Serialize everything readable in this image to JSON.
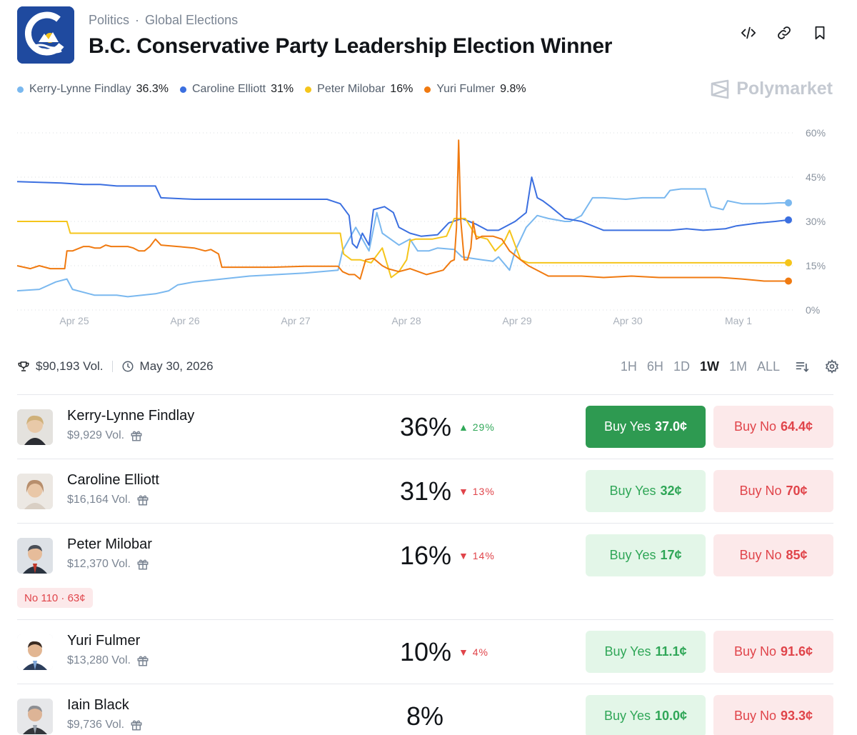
{
  "header": {
    "category": "Politics",
    "subcategory": "Global Elections",
    "title": "B.C. Conservative Party Leadership Election Winner",
    "icons": [
      "code-embed-icon",
      "link-icon",
      "bookmark-icon"
    ],
    "brand": "Polymarket"
  },
  "legend": [
    {
      "name": "Kerry-Lynne Findlay",
      "pct": "36.3%",
      "color": "#7ab8ef"
    },
    {
      "name": "Caroline Elliott",
      "pct": "31%",
      "color": "#3b6fe0"
    },
    {
      "name": "Peter Milobar",
      "pct": "16%",
      "color": "#f5c51b"
    },
    {
      "name": "Yuri Fulmer",
      "pct": "9.8%",
      "color": "#f07a10"
    }
  ],
  "chart_data": {
    "type": "line",
    "x_tick_labels": [
      "Apr 25",
      "Apr 26",
      "Apr 27",
      "Apr 28",
      "Apr 29",
      "Apr 30",
      "May 1"
    ],
    "y_tick_labels": [
      "60%",
      "45%",
      "30%",
      "15%",
      "0%"
    ],
    "ylim": [
      0,
      60
    ],
    "xlim": [
      0,
      7
    ],
    "grid": "horizontal dotted",
    "series": [
      {
        "name": "Kerry-Lynne Findlay",
        "color": "#7ab8ef",
        "points": [
          [
            0,
            6.5
          ],
          [
            0.2,
            7
          ],
          [
            0.35,
            9.5
          ],
          [
            0.45,
            10.5
          ],
          [
            0.5,
            7
          ],
          [
            0.7,
            5
          ],
          [
            0.9,
            5
          ],
          [
            1.0,
            4.5
          ],
          [
            1.25,
            5.5
          ],
          [
            1.37,
            6.5
          ],
          [
            1.45,
            8.5
          ],
          [
            1.6,
            9.5
          ],
          [
            1.85,
            10.5
          ],
          [
            2.1,
            11.5
          ],
          [
            2.35,
            12
          ],
          [
            2.6,
            12.5
          ],
          [
            2.9,
            13.5
          ],
          [
            2.94,
            20
          ],
          [
            3.06,
            28
          ],
          [
            3.12,
            24
          ],
          [
            3.18,
            20
          ],
          [
            3.25,
            33
          ],
          [
            3.3,
            26
          ],
          [
            3.45,
            22
          ],
          [
            3.55,
            24
          ],
          [
            3.62,
            20
          ],
          [
            3.72,
            20
          ],
          [
            3.8,
            21
          ],
          [
            3.95,
            20.5
          ],
          [
            4.02,
            18
          ],
          [
            4.2,
            17
          ],
          [
            4.3,
            16.5
          ],
          [
            4.35,
            18
          ],
          [
            4.45,
            13.5
          ],
          [
            4.5,
            20
          ],
          [
            4.6,
            28
          ],
          [
            4.7,
            32
          ],
          [
            4.8,
            31
          ],
          [
            4.95,
            30
          ],
          [
            5.0,
            30
          ],
          [
            5.1,
            32
          ],
          [
            5.2,
            38
          ],
          [
            5.3,
            38
          ],
          [
            5.5,
            37.5
          ],
          [
            5.65,
            38
          ],
          [
            5.85,
            38
          ],
          [
            5.9,
            40.5
          ],
          [
            6.0,
            41
          ],
          [
            6.1,
            41
          ],
          [
            6.22,
            41
          ],
          [
            6.27,
            35
          ],
          [
            6.38,
            34
          ],
          [
            6.42,
            37
          ],
          [
            6.55,
            36
          ],
          [
            6.75,
            36
          ],
          [
            6.88,
            36.3
          ],
          [
            6.97,
            36.3
          ]
        ]
      },
      {
        "name": "Caroline Elliott",
        "color": "#3b6fe0",
        "points": [
          [
            0,
            43.5
          ],
          [
            0.4,
            43
          ],
          [
            0.6,
            42.5
          ],
          [
            0.75,
            42.5
          ],
          [
            0.9,
            42
          ],
          [
            1.1,
            42
          ],
          [
            1.25,
            42
          ],
          [
            1.3,
            38
          ],
          [
            1.6,
            37.5
          ],
          [
            2.2,
            37.5
          ],
          [
            2.6,
            37.5
          ],
          [
            2.8,
            37.5
          ],
          [
            2.84,
            37
          ],
          [
            2.92,
            36
          ],
          [
            3.0,
            32
          ],
          [
            3.03,
            22.5
          ],
          [
            3.07,
            21
          ],
          [
            3.12,
            26
          ],
          [
            3.18,
            22
          ],
          [
            3.22,
            34
          ],
          [
            3.32,
            35
          ],
          [
            3.4,
            33
          ],
          [
            3.45,
            28
          ],
          [
            3.55,
            26
          ],
          [
            3.65,
            25
          ],
          [
            3.8,
            25.5
          ],
          [
            3.9,
            29.5
          ],
          [
            4.02,
            31
          ],
          [
            4.15,
            29
          ],
          [
            4.25,
            27
          ],
          [
            4.35,
            27
          ],
          [
            4.5,
            30
          ],
          [
            4.6,
            33
          ],
          [
            4.65,
            45
          ],
          [
            4.7,
            38
          ],
          [
            4.75,
            37
          ],
          [
            4.82,
            35
          ],
          [
            4.95,
            31
          ],
          [
            5.1,
            30
          ],
          [
            5.3,
            27
          ],
          [
            5.6,
            27
          ],
          [
            5.9,
            27
          ],
          [
            6.05,
            27.5
          ],
          [
            6.2,
            27
          ],
          [
            6.4,
            27.5
          ],
          [
            6.5,
            28.5
          ],
          [
            6.7,
            29.5
          ],
          [
            6.85,
            30
          ],
          [
            6.97,
            30.5
          ]
        ]
      },
      {
        "name": "Peter Milobar",
        "color": "#f5c51b",
        "points": [
          [
            0,
            30
          ],
          [
            0.45,
            30
          ],
          [
            0.48,
            26
          ],
          [
            0.85,
            26
          ],
          [
            1.2,
            26
          ],
          [
            1.6,
            26
          ],
          [
            2.0,
            26
          ],
          [
            2.4,
            26
          ],
          [
            2.92,
            26
          ],
          [
            2.95,
            19
          ],
          [
            3.02,
            17
          ],
          [
            3.1,
            17
          ],
          [
            3.2,
            16
          ],
          [
            3.3,
            21
          ],
          [
            3.38,
            11
          ],
          [
            3.45,
            13
          ],
          [
            3.52,
            17
          ],
          [
            3.55,
            23.5
          ],
          [
            3.6,
            24
          ],
          [
            3.75,
            24
          ],
          [
            3.88,
            25
          ],
          [
            3.95,
            31
          ],
          [
            4.05,
            31
          ],
          [
            4.15,
            25
          ],
          [
            4.25,
            24
          ],
          [
            4.32,
            20
          ],
          [
            4.4,
            23
          ],
          [
            4.45,
            27
          ],
          [
            4.5,
            22
          ],
          [
            4.55,
            17
          ],
          [
            4.62,
            16
          ],
          [
            4.8,
            16
          ],
          [
            5.2,
            16
          ],
          [
            5.6,
            16
          ],
          [
            6.0,
            16
          ],
          [
            6.5,
            16
          ],
          [
            6.97,
            16
          ]
        ]
      },
      {
        "name": "Yuri Fulmer",
        "color": "#f07a10",
        "points": [
          [
            0,
            15
          ],
          [
            0.12,
            14
          ],
          [
            0.2,
            15
          ],
          [
            0.3,
            14
          ],
          [
            0.43,
            14
          ],
          [
            0.45,
            20
          ],
          [
            0.5,
            20
          ],
          [
            0.6,
            21.5
          ],
          [
            0.65,
            21.5
          ],
          [
            0.7,
            21
          ],
          [
            0.75,
            21
          ],
          [
            0.8,
            22
          ],
          [
            0.85,
            21.5
          ],
          [
            0.95,
            21.5
          ],
          [
            1.0,
            21.5
          ],
          [
            1.05,
            21
          ],
          [
            1.1,
            20
          ],
          [
            1.15,
            20
          ],
          [
            1.2,
            21.5
          ],
          [
            1.25,
            24
          ],
          [
            1.3,
            22
          ],
          [
            1.45,
            21.5
          ],
          [
            1.6,
            21
          ],
          [
            1.7,
            20
          ],
          [
            1.75,
            20.5
          ],
          [
            1.82,
            19
          ],
          [
            1.85,
            14.5
          ],
          [
            2.0,
            14.5
          ],
          [
            2.3,
            14.5
          ],
          [
            2.6,
            14.8
          ],
          [
            2.9,
            14.8
          ],
          [
            2.94,
            13
          ],
          [
            3.0,
            12
          ],
          [
            3.05,
            12
          ],
          [
            3.1,
            10.5
          ],
          [
            3.15,
            17
          ],
          [
            3.22,
            17.5
          ],
          [
            3.3,
            15
          ],
          [
            3.35,
            14
          ],
          [
            3.45,
            13
          ],
          [
            3.55,
            14
          ],
          [
            3.7,
            12
          ],
          [
            3.85,
            13.5
          ],
          [
            3.92,
            16.5
          ],
          [
            3.95,
            17
          ],
          [
            3.97,
            28
          ],
          [
            3.99,
            57.5
          ],
          [
            4.01,
            30
          ],
          [
            4.04,
            17
          ],
          [
            4.07,
            17
          ],
          [
            4.1,
            21
          ],
          [
            4.12,
            30
          ],
          [
            4.15,
            24
          ],
          [
            4.2,
            25
          ],
          [
            4.3,
            25
          ],
          [
            4.38,
            24
          ],
          [
            4.45,
            20
          ],
          [
            4.55,
            17
          ],
          [
            4.62,
            15
          ],
          [
            4.8,
            11.5
          ],
          [
            5.1,
            11.5
          ],
          [
            5.3,
            11
          ],
          [
            5.55,
            11.5
          ],
          [
            5.8,
            11
          ],
          [
            6.0,
            11
          ],
          [
            6.2,
            11
          ],
          [
            6.35,
            11
          ],
          [
            6.55,
            10.5
          ],
          [
            6.7,
            10
          ],
          [
            6.75,
            9.8
          ],
          [
            6.85,
            9.8
          ],
          [
            6.97,
            9.8
          ]
        ]
      }
    ]
  },
  "meta": {
    "volume": "$90,193 Vol.",
    "end_date": "May 30, 2026"
  },
  "ranges": [
    {
      "label": "1H",
      "active": false
    },
    {
      "label": "6H",
      "active": false
    },
    {
      "label": "1D",
      "active": false
    },
    {
      "label": "1W",
      "active": true
    },
    {
      "label": "1M",
      "active": false
    },
    {
      "label": "ALL",
      "active": false
    }
  ],
  "outcomes": [
    {
      "name": "Kerry-Lynne Findlay",
      "volume": "$9,929 Vol.",
      "pct": "36%",
      "change": "29%",
      "direction": "up",
      "yes_label": "Buy Yes",
      "yes_price": "37.0¢",
      "no_label": "Buy No",
      "no_price": "64.4¢",
      "yes_solid": true,
      "avatar_color": "#cfb17a"
    },
    {
      "name": "Caroline Elliott",
      "volume": "$16,164 Vol.",
      "pct": "31%",
      "change": "13%",
      "direction": "down",
      "yes_label": "Buy Yes",
      "yes_price": "32¢",
      "no_label": "Buy No",
      "no_price": "70¢",
      "yes_solid": false,
      "avatar_color": "#b78e6c"
    },
    {
      "name": "Peter Milobar",
      "volume": "$12,370 Vol.",
      "pct": "16%",
      "change": "14%",
      "direction": "down",
      "yes_label": "Buy Yes",
      "yes_price": "17¢",
      "no_label": "Buy No",
      "no_price": "85¢",
      "yes_solid": false,
      "avatar_color": "#4a4f57",
      "order_pill": "No 110 · 63¢"
    },
    {
      "name": "Yuri Fulmer",
      "volume": "$13,280 Vol.",
      "pct": "10%",
      "change": "4%",
      "direction": "down",
      "yes_label": "Buy Yes",
      "yes_price": "11.1¢",
      "no_label": "Buy No",
      "no_price": "91.6¢",
      "yes_solid": false,
      "avatar_color": "#6b5546"
    },
    {
      "name": "Iain Black",
      "volume": "$9,736 Vol.",
      "pct": "8%",
      "change": "",
      "direction": "",
      "yes_label": "Buy Yes",
      "yes_price": "10.0¢",
      "no_label": "Buy No",
      "no_price": "93.3¢",
      "yes_solid": false,
      "avatar_color": "#8d8f93"
    }
  ]
}
